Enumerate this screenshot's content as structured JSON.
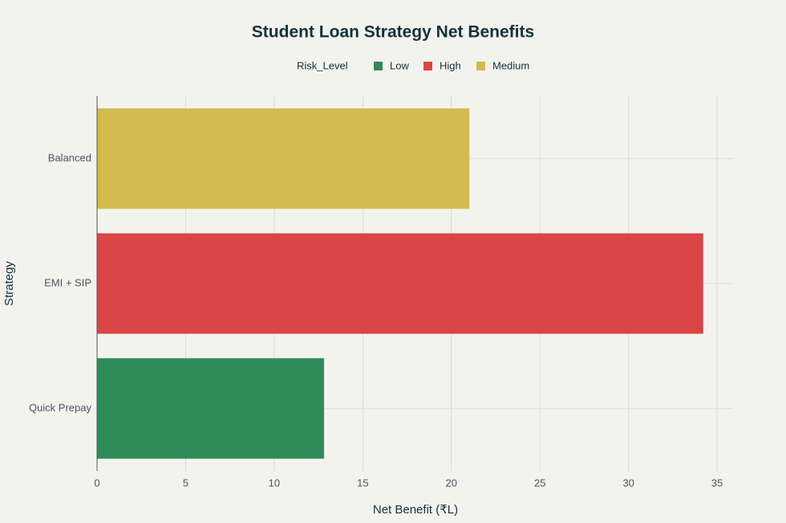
{
  "chart_data": {
    "type": "bar",
    "orientation": "horizontal",
    "title": "Student Loan Strategy Net Benefits",
    "legend_title": "Risk_Level",
    "x_label": "Net Benefit (₹L)",
    "y_label": "Strategy",
    "categories": [
      "Quick Prepay",
      "EMI + SIP",
      "Balanced"
    ],
    "series": [
      {
        "name": "Low",
        "color": "#2e8b57",
        "values": [
          12.8,
          null,
          null
        ]
      },
      {
        "name": "High",
        "color": "#db4545",
        "values": [
          null,
          34.2,
          null
        ]
      },
      {
        "name": "Medium",
        "color": "#d2ba4c",
        "values": [
          null,
          null,
          21
        ]
      }
    ],
    "xlim": [
      0,
      35.9
    ],
    "xticks": [
      0,
      5,
      10,
      15,
      20,
      25,
      30,
      35
    ],
    "grid": true
  }
}
